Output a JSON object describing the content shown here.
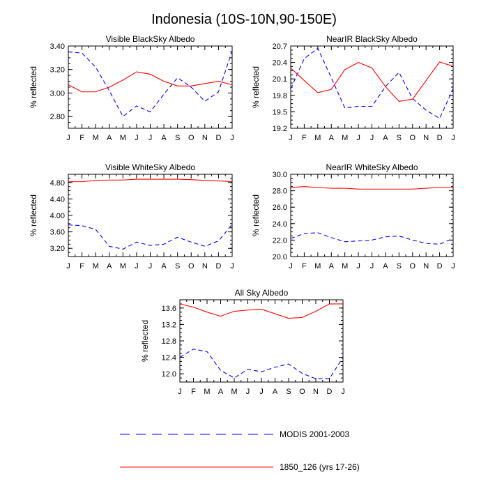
{
  "figure_title": "Indonesia (10S-10N,90-150E)",
  "legend": [
    {
      "label": "MODIS 2001-2003",
      "color": "#0000ff",
      "dash": true
    },
    {
      "label": "1850_126 (yrs 17-26)",
      "color": "#ff0000",
      "dash": false
    }
  ],
  "chart_data": [
    {
      "type": "line",
      "title": "Visible BlackSky Albedo",
      "ylabel": "% reflected",
      "x": [
        "J",
        "F",
        "M",
        "A",
        "M",
        "J",
        "J",
        "A",
        "S",
        "O",
        "N",
        "D",
        "J"
      ],
      "ylim": [
        2.7,
        3.4
      ],
      "yticks": [
        "2.80",
        "3.00",
        "3.20",
        "3.40"
      ],
      "series": [
        {
          "name": "MODIS 2001-2003",
          "color": "#0000ff",
          "dash": true,
          "values": [
            3.35,
            3.34,
            3.22,
            3.02,
            2.8,
            2.89,
            2.84,
            2.99,
            3.13,
            3.05,
            2.93,
            3.01,
            3.36
          ]
        },
        {
          "name": "1850_126 (yrs 17-26)",
          "color": "#ff0000",
          "dash": false,
          "values": [
            3.07,
            3.01,
            3.01,
            3.05,
            3.11,
            3.18,
            3.16,
            3.1,
            3.06,
            3.06,
            3.08,
            3.1,
            3.07
          ]
        }
      ]
    },
    {
      "type": "line",
      "title": "NearIR BlackSky Albedo",
      "ylabel": "% reflected",
      "x": [
        "J",
        "F",
        "M",
        "A",
        "M",
        "J",
        "J",
        "A",
        "S",
        "O",
        "N",
        "D",
        "J"
      ],
      "ylim": [
        19.2,
        20.7
      ],
      "yticks": [
        "19.2",
        "19.5",
        "19.8",
        "20.1",
        "20.4",
        "20.7"
      ],
      "series": [
        {
          "name": "MODIS 2001-2003",
          "color": "#0000ff",
          "dash": true,
          "values": [
            19.92,
            20.47,
            20.66,
            20.12,
            19.57,
            19.6,
            19.6,
            19.96,
            20.22,
            19.74,
            19.53,
            19.38,
            19.92
          ]
        },
        {
          "name": "1850_126 (yrs 17-26)",
          "color": "#ff0000",
          "dash": false,
          "values": [
            20.3,
            20.07,
            19.85,
            19.91,
            20.27,
            20.4,
            20.3,
            19.96,
            19.69,
            19.73,
            20.07,
            20.41,
            20.33
          ]
        }
      ]
    },
    {
      "type": "line",
      "title": "Visible WhiteSky Albedo",
      "ylabel": "% reflected",
      "x": [
        "J",
        "F",
        "M",
        "A",
        "M",
        "J",
        "J",
        "A",
        "S",
        "O",
        "N",
        "D",
        "J"
      ],
      "ylim": [
        3.0,
        5.0
      ],
      "yticks": [
        "3.20",
        "3.60",
        "4.00",
        "4.40",
        "4.80"
      ],
      "series": [
        {
          "name": "MODIS 2001-2003",
          "color": "#0000ff",
          "dash": true,
          "values": [
            3.77,
            3.75,
            3.66,
            3.25,
            3.18,
            3.35,
            3.27,
            3.3,
            3.47,
            3.35,
            3.25,
            3.38,
            3.78
          ]
        },
        {
          "name": "1850_126 (yrs 17-26)",
          "color": "#ff0000",
          "dash": false,
          "values": [
            4.82,
            4.82,
            4.85,
            4.86,
            4.86,
            4.88,
            4.88,
            4.88,
            4.88,
            4.87,
            4.85,
            4.84,
            4.82
          ]
        }
      ]
    },
    {
      "type": "line",
      "title": "NearIR WhiteSky Albedo",
      "ylabel": "% reflected",
      "x": [
        "J",
        "F",
        "M",
        "A",
        "M",
        "J",
        "J",
        "A",
        "S",
        "O",
        "N",
        "D",
        "J"
      ],
      "ylim": [
        20.0,
        30.0
      ],
      "yticks": [
        "20.0",
        "22.0",
        "24.0",
        "26.0",
        "28.0",
        "30.0"
      ],
      "series": [
        {
          "name": "MODIS 2001-2003",
          "color": "#0000ff",
          "dash": true,
          "values": [
            22.2,
            22.8,
            22.9,
            22.3,
            21.8,
            21.9,
            22.0,
            22.4,
            22.5,
            22.0,
            21.6,
            21.5,
            22.2
          ]
        },
        {
          "name": "1850_126 (yrs 17-26)",
          "color": "#ff0000",
          "dash": false,
          "values": [
            28.4,
            28.5,
            28.4,
            28.3,
            28.3,
            28.2,
            28.2,
            28.2,
            28.2,
            28.2,
            28.3,
            28.4,
            28.4
          ]
        }
      ]
    },
    {
      "type": "line",
      "title": "All Sky Albedo",
      "ylabel": "% reflected",
      "x": [
        "J",
        "F",
        "M",
        "A",
        "M",
        "J",
        "J",
        "A",
        "S",
        "O",
        "N",
        "D",
        "J"
      ],
      "ylim": [
        11.8,
        13.8
      ],
      "yticks": [
        "12.0",
        "12.4",
        "12.8",
        "13.2",
        "13.6"
      ],
      "series": [
        {
          "name": "MODIS 2001-2003",
          "color": "#0000ff",
          "dash": true,
          "values": [
            12.4,
            12.6,
            12.54,
            12.08,
            11.9,
            12.11,
            12.05,
            12.16,
            12.24,
            12.01,
            11.88,
            11.88,
            12.4
          ]
        },
        {
          "name": "1850_126 (yrs 17-26)",
          "color": "#ff0000",
          "dash": false,
          "values": [
            13.7,
            13.62,
            13.5,
            13.4,
            13.52,
            13.55,
            13.57,
            13.46,
            13.35,
            13.37,
            13.52,
            13.7,
            13.7
          ]
        }
      ]
    }
  ]
}
